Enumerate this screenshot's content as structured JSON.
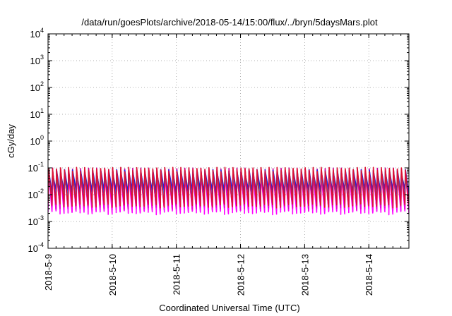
{
  "chart_data": {
    "type": "line",
    "title": "/data/run/goesPlots/archive/2018-05-14/15:00/flux/../bryn/5daysMars.plot",
    "xlabel": "Coordinated Universal Time (UTC)",
    "ylabel": "cGy/day",
    "yscale": "log",
    "ylim": [
      0.0001,
      10000
    ],
    "y_ticks": [
      {
        "value": 0.0001,
        "base": "10",
        "exp": "-4"
      },
      {
        "value": 0.001,
        "base": "10",
        "exp": "-3"
      },
      {
        "value": 0.01,
        "base": "10",
        "exp": "-2"
      },
      {
        "value": 0.1,
        "base": "10",
        "exp": "-1"
      },
      {
        "value": 1,
        "base": "10",
        "exp": "0"
      },
      {
        "value": 10,
        "base": "10",
        "exp": "1"
      },
      {
        "value": 100,
        "base": "10",
        "exp": "2"
      },
      {
        "value": 1000,
        "base": "10",
        "exp": "3"
      },
      {
        "value": 10000,
        "base": "10",
        "exp": "4"
      }
    ],
    "xlim": [
      "2018-05-09 00:00",
      "2018-05-14 15:00"
    ],
    "x_ticks": [
      "2018-5-9",
      "2018-5-10",
      "2018-5-11",
      "2018-5-12",
      "2018-5-13",
      "2018-5-14"
    ],
    "grid": true,
    "legend": "none",
    "sample_interval_hours": 1.5,
    "series": [
      {
        "color": "#cc0099",
        "peak": 0.09,
        "trough": 0.0028
      },
      {
        "color": "#ff00ff",
        "peak": 0.075,
        "trough": 0.0022
      },
      {
        "color": "#e600cc",
        "peak": 0.06,
        "trough": 0.0035
      },
      {
        "color": "#009999",
        "peak": 0.06,
        "trough": 0.006
      },
      {
        "color": "#3399ff",
        "peak": 0.07,
        "trough": 0.009
      },
      {
        "color": "#2222dd",
        "peak": 0.08,
        "trough": 0.012
      },
      {
        "color": "#dd1133",
        "peak": 0.095,
        "trough": 0.004
      }
    ]
  }
}
